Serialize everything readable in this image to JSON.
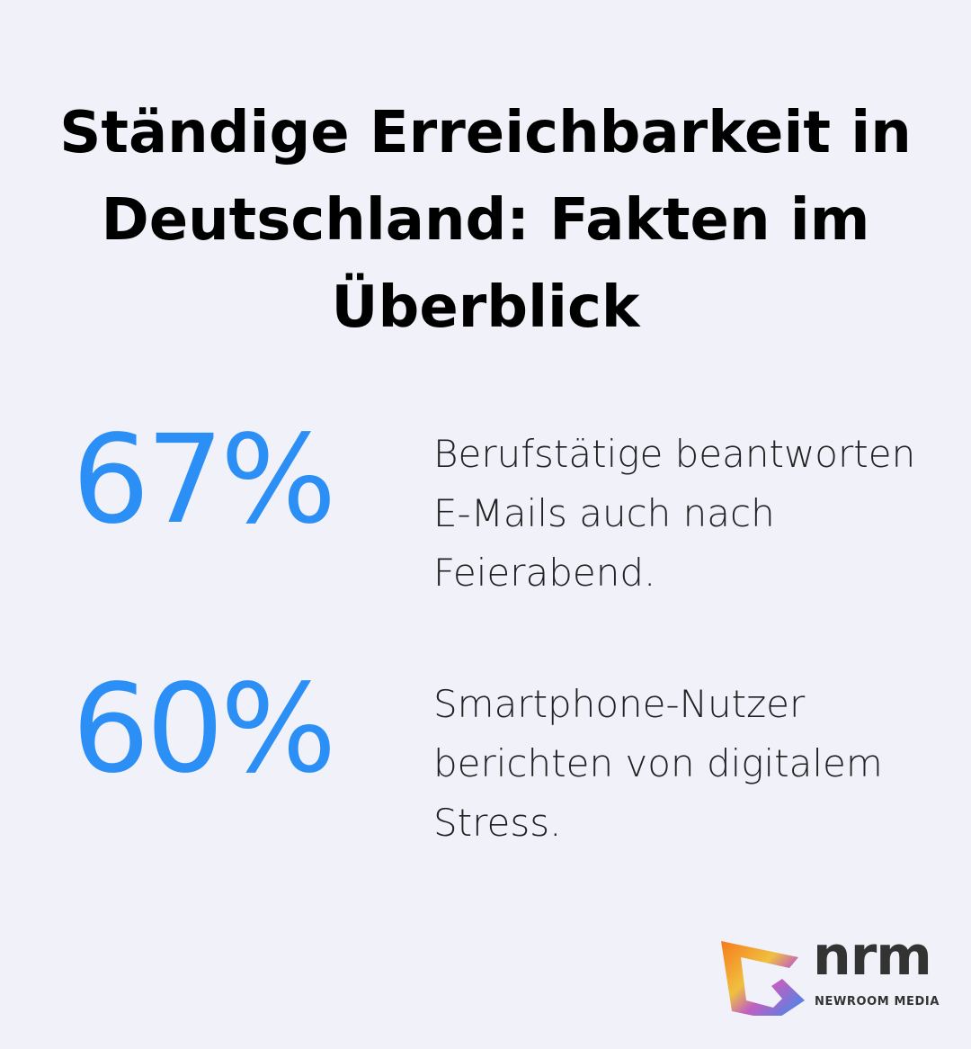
{
  "title": "Ständige Erreichbarkeit in Deutschland: Fakten im Überblick",
  "stats": [
    {
      "value": "67%",
      "text": "Berufstätige beantworten E-Mails auch nach Feierabend."
    },
    {
      "value": "60%",
      "text": "Smartphone-Nutzer berichten von digitalem Stress."
    }
  ],
  "logo": {
    "name": "nrm",
    "subtitle": "NEWROOM MEDIA"
  },
  "colors": {
    "accent": "#2b8ff5",
    "background": "#f1f1f9"
  }
}
